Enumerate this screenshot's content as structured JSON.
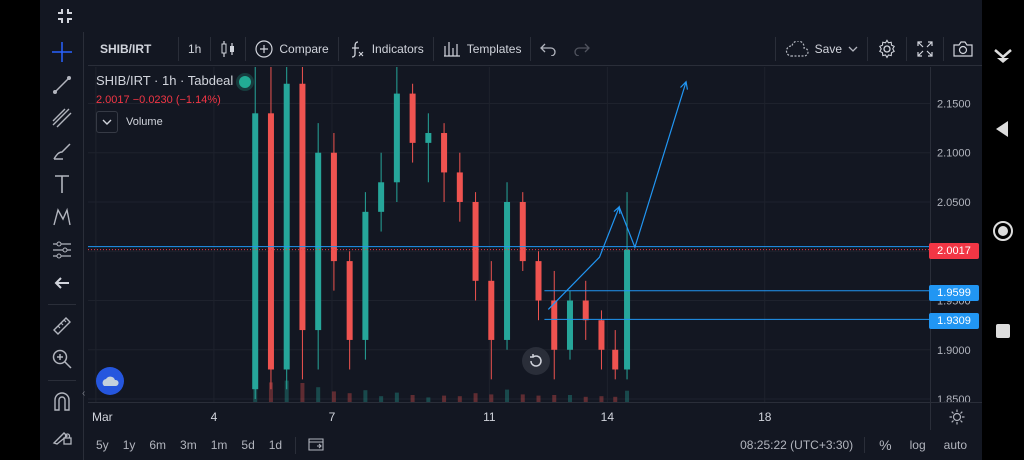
{
  "toolbar": {
    "symbol": "SHIB/IRT",
    "interval": "1h",
    "compare": "Compare",
    "indicators": "Indicators",
    "templates": "Templates",
    "save": "Save"
  },
  "legend": {
    "title": "SHIB/IRT · 1h · Tabdeal",
    "price": "2.0017",
    "change": "−0.0230 (−1.14%)",
    "volume_label": "Volume"
  },
  "price_tags": {
    "last": "2.0017",
    "line1": "1.9599",
    "line2": "1.9309"
  },
  "bottom": {
    "ranges": [
      "5y",
      "1y",
      "6m",
      "3m",
      "1m",
      "5d",
      "1d"
    ],
    "time": "08:25:22 (UTC+3:30)",
    "percent": "%",
    "log": "log",
    "auto": "auto"
  },
  "colors": {
    "up": "#26a69a",
    "down": "#ef5350",
    "drawing": "#2196f3",
    "last_price": "#f23645"
  },
  "chart_data": {
    "type": "candlestick",
    "y_tick_labels": [
      "2.1500",
      "2.1000",
      "2.0500",
      "2.0000",
      "1.9500",
      "1.9000",
      "1.8500"
    ],
    "ylim": [
      1.847,
      2.187
    ],
    "x_tick_labels": [
      "Mar",
      "4",
      "7",
      "11",
      "14",
      "18"
    ],
    "x_ticks_day": [
      1,
      4,
      7,
      11,
      14,
      18
    ],
    "xlim_day": [
      0.8,
      22.2
    ],
    "last_price": 2.0017,
    "horizontal_lines": [
      2.0017,
      1.9599,
      1.9309
    ],
    "trend_projection": [
      [
        12.5,
        1.941
      ],
      [
        13.8,
        1.994
      ],
      [
        14.3,
        2.045
      ],
      [
        14.7,
        2.004
      ],
      [
        16.0,
        2.172
      ]
    ],
    "candles": [
      {
        "day": 5.05,
        "o": 1.86,
        "h": 2.19,
        "l": 1.85,
        "c": 2.14
      },
      {
        "day": 5.45,
        "o": 2.14,
        "h": 2.19,
        "l": 1.86,
        "c": 1.88
      },
      {
        "day": 5.85,
        "o": 1.88,
        "h": 2.19,
        "l": 1.86,
        "c": 2.17
      },
      {
        "day": 6.25,
        "o": 2.17,
        "h": 2.19,
        "l": 1.87,
        "c": 1.92
      },
      {
        "day": 6.65,
        "o": 1.92,
        "h": 2.13,
        "l": 1.88,
        "c": 2.1
      },
      {
        "day": 7.05,
        "o": 2.1,
        "h": 2.12,
        "l": 1.96,
        "c": 1.99
      },
      {
        "day": 7.45,
        "o": 1.99,
        "h": 2.0,
        "l": 1.88,
        "c": 1.91
      },
      {
        "day": 7.85,
        "o": 1.91,
        "h": 2.06,
        "l": 1.89,
        "c": 2.04
      },
      {
        "day": 8.25,
        "o": 2.04,
        "h": 2.1,
        "l": 2.02,
        "c": 2.07
      },
      {
        "day": 8.65,
        "o": 2.07,
        "h": 2.19,
        "l": 2.05,
        "c": 2.16
      },
      {
        "day": 9.05,
        "o": 2.16,
        "h": 2.17,
        "l": 2.09,
        "c": 2.11
      },
      {
        "day": 9.45,
        "o": 2.11,
        "h": 2.14,
        "l": 2.07,
        "c": 2.12
      },
      {
        "day": 9.85,
        "o": 2.12,
        "h": 2.13,
        "l": 2.05,
        "c": 2.08
      },
      {
        "day": 10.25,
        "o": 2.08,
        "h": 2.1,
        "l": 2.03,
        "c": 2.05
      },
      {
        "day": 10.65,
        "o": 2.05,
        "h": 2.06,
        "l": 1.95,
        "c": 1.97
      },
      {
        "day": 11.05,
        "o": 1.97,
        "h": 1.99,
        "l": 1.87,
        "c": 1.91
      },
      {
        "day": 11.45,
        "o": 1.91,
        "h": 2.07,
        "l": 1.9,
        "c": 2.05
      },
      {
        "day": 11.85,
        "o": 2.05,
        "h": 2.06,
        "l": 1.98,
        "c": 1.99
      },
      {
        "day": 12.25,
        "o": 1.99,
        "h": 2.0,
        "l": 1.93,
        "c": 1.95
      },
      {
        "day": 12.65,
        "o": 1.95,
        "h": 1.98,
        "l": 1.87,
        "c": 1.9
      },
      {
        "day": 13.05,
        "o": 1.9,
        "h": 1.96,
        "l": 1.89,
        "c": 1.95
      },
      {
        "day": 13.45,
        "o": 1.95,
        "h": 1.97,
        "l": 1.91,
        "c": 1.93
      },
      {
        "day": 13.85,
        "o": 1.93,
        "h": 1.94,
        "l": 1.88,
        "c": 1.9
      },
      {
        "day": 14.2,
        "o": 1.9,
        "h": 1.92,
        "l": 1.87,
        "c": 1.88
      },
      {
        "day": 14.5,
        "o": 1.88,
        "h": 2.06,
        "l": 1.87,
        "c": 2.0017
      }
    ]
  }
}
